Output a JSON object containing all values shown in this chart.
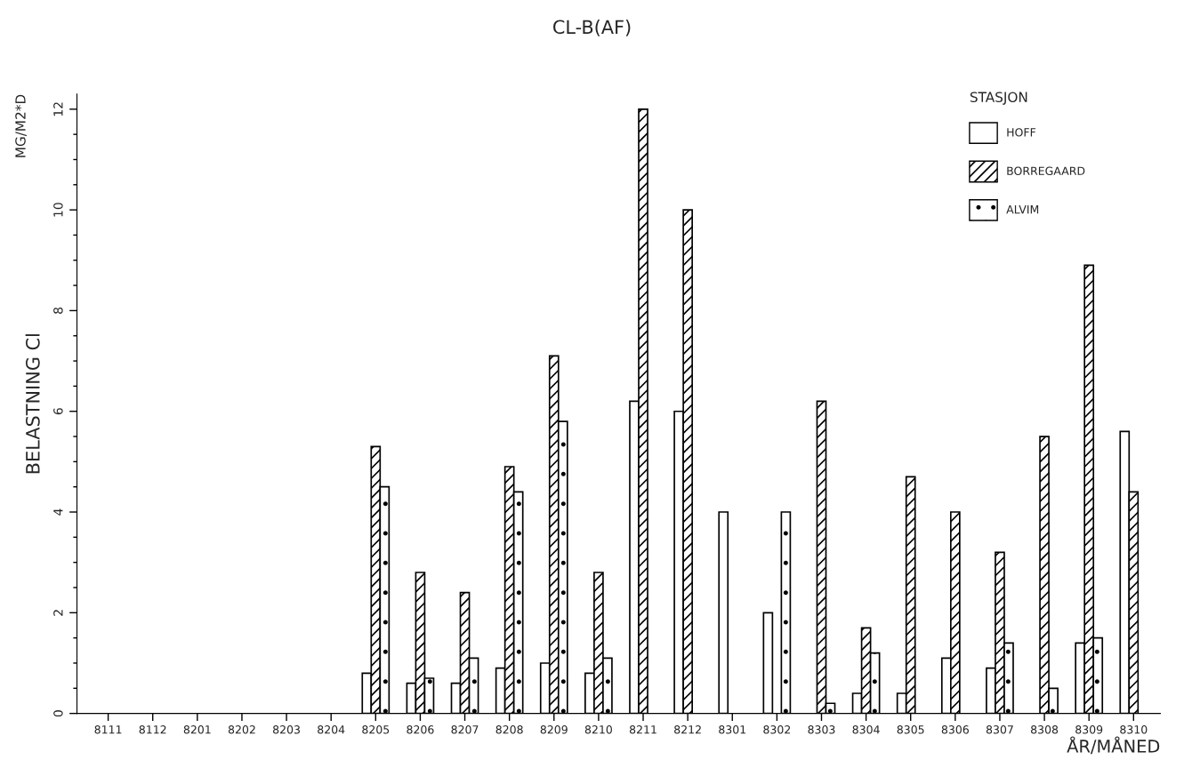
{
  "chart_data": {
    "type": "bar",
    "title": "CL-B(AF)",
    "xlabel": "ÅR/MÅNED",
    "ylabel": "BELASTNING Cl",
    "legend_title": "STASJON",
    "annotations": [
      "MG/M2*D"
    ],
    "categories": [
      "8111",
      "8112",
      "8201",
      "8202",
      "8203",
      "8204",
      "8205",
      "8206",
      "8207",
      "8208",
      "8209",
      "8210",
      "8211",
      "8212",
      "8301",
      "8302",
      "8303",
      "8304",
      "8305",
      "8306",
      "8307",
      "8308",
      "8309",
      "8310"
    ],
    "series": [
      {
        "name": "HOFF",
        "color": "#ffffff",
        "values": [
          null,
          null,
          null,
          null,
          null,
          null,
          0.8,
          0.6,
          0.6,
          0.9,
          1.0,
          0.8,
          6.2,
          6.0,
          4.0,
          2.0,
          null,
          0.4,
          0.4,
          1.1,
          0.9,
          null,
          1.4,
          5.6
        ]
      },
      {
        "name": "BORREGAARD",
        "color": "#000000",
        "values": [
          null,
          null,
          null,
          null,
          null,
          null,
          5.3,
          2.8,
          2.4,
          4.9,
          7.1,
          2.8,
          12.0,
          10.0,
          null,
          null,
          6.2,
          1.7,
          4.7,
          4.0,
          3.2,
          5.5,
          8.9,
          4.4
        ]
      },
      {
        "name": "ALVIM",
        "color": "#000000",
        "values": [
          null,
          null,
          null,
          null,
          null,
          null,
          4.5,
          0.7,
          1.1,
          4.4,
          5.8,
          1.1,
          null,
          null,
          null,
          4.0,
          0.2,
          1.2,
          null,
          null,
          1.4,
          0.5,
          1.5,
          null
        ]
      }
    ],
    "ylim": [
      0,
      12.3
    ],
    "yticks": [
      0,
      {
        "value": 0.5,
        "label": null
      },
      {
        "value": 1,
        "label": null
      },
      {
        "value": 1.5,
        "label": null
      },
      2,
      {
        "value": 2.5,
        "label": null
      },
      {
        "value": 3,
        "label": null
      },
      {
        "value": 3.5,
        "label": null
      },
      4,
      {
        "value": 4.5,
        "label": null
      },
      {
        "value": 5,
        "label": null
      },
      {
        "value": 5.5,
        "label": null
      },
      6,
      {
        "value": 6.5,
        "label": null
      },
      {
        "value": 7,
        "label": null
      },
      {
        "value": 7.5,
        "label": null
      },
      8,
      {
        "value": 8.5,
        "label": null
      },
      {
        "value": 9,
        "label": null
      },
      {
        "value": 9.5,
        "label": null
      },
      10,
      {
        "value": 10.5,
        "label": null
      },
      {
        "value": 11,
        "label": null
      },
      {
        "value": 11.5,
        "label": null
      },
      12
    ],
    "grid": false,
    "legend": "top right"
  }
}
